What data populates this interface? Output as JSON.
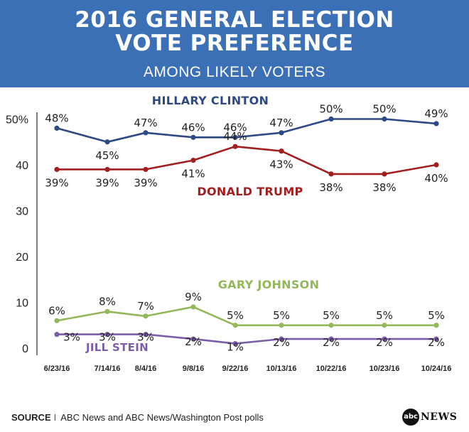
{
  "header": {
    "title_line1": "2016 GENERAL ELECTION",
    "title_line2": "VOTE PREFERENCE",
    "subtitle": "AMONG LIKELY VOTERS"
  },
  "chart_data": {
    "type": "line",
    "categories": [
      "6/23/16",
      "7/14/16",
      "8/4/16",
      "9/8/16",
      "9/22/16",
      "10/13/16",
      "10/22/16",
      "10/23/16",
      "10/24/16"
    ],
    "ylim": [
      0,
      50
    ],
    "yticks": [
      0,
      10,
      20,
      30,
      40,
      50
    ],
    "ytick_labels": [
      "0",
      "10",
      "20",
      "30",
      "40",
      "50%"
    ],
    "grid": false,
    "series": [
      {
        "name": "HILLARY CLINTON",
        "color": "#2e4a84",
        "values": [
          48,
          45,
          47,
          46,
          46,
          47,
          50,
          50,
          49
        ],
        "labels": [
          "48%",
          "45%",
          "47%",
          "46%",
          "46%",
          "47%",
          "50%",
          "50%",
          "49%"
        ]
      },
      {
        "name": "DONALD TRUMP",
        "color": "#a31f1f",
        "values": [
          39,
          39,
          39,
          41,
          44,
          43,
          38,
          38,
          40
        ],
        "labels": [
          "39%",
          "39%",
          "39%",
          "41%",
          "44%",
          "43%",
          "38%",
          "38%",
          "40%"
        ]
      },
      {
        "name": "GARY JOHNSON",
        "color": "#93b759",
        "values": [
          6,
          8,
          7,
          9,
          5,
          5,
          5,
          5,
          5
        ],
        "labels": [
          "6%",
          "8%",
          "7%",
          "9%",
          "5%",
          "5%",
          "5%",
          "5%",
          "5%"
        ]
      },
      {
        "name": "JILL STEIN",
        "color": "#7b5ea7",
        "values": [
          3,
          3,
          3,
          2,
          1,
          2,
          2,
          2,
          2
        ],
        "labels": [
          "3%",
          "3%",
          "3%",
          "2%",
          "1%",
          "2%",
          "2%",
          "2%",
          "2%"
        ]
      }
    ]
  },
  "footer": {
    "source_label": "SOURCE",
    "separator": "I",
    "source_text": "ABC News and ABC News/Washington Post polls",
    "logo_mark": "abc",
    "logo_word": "NEWS"
  }
}
